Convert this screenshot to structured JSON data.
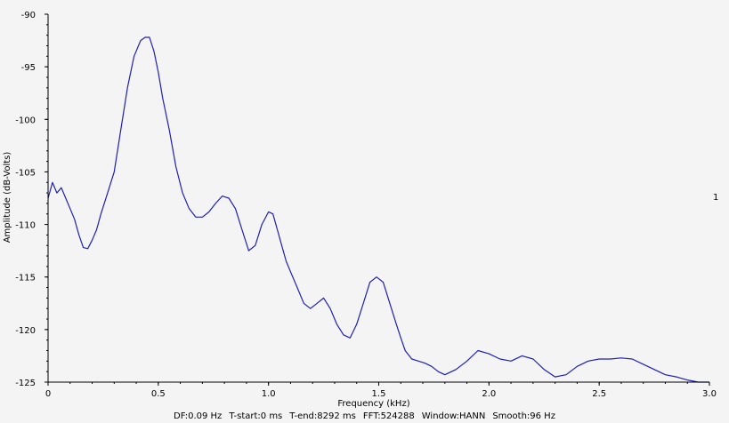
{
  "chart_data": {
    "type": "line",
    "title": "",
    "xlabel": "Frequency (kHz)",
    "ylabel": "Amplitude (dB-Volts)",
    "xlim": [
      0,
      3.0
    ],
    "ylim": [
      -125,
      -90
    ],
    "x_ticks": [
      "0",
      "0.5",
      "1.0",
      "1.5",
      "2.0",
      "2.5",
      "3.0"
    ],
    "x_tick_values": [
      0,
      0.5,
      1.0,
      1.5,
      2.0,
      2.5,
      3.0
    ],
    "y_ticks": [
      "-90",
      "-95",
      "-100",
      "-105",
      "-110",
      "-115",
      "-120",
      "-125"
    ],
    "y_tick_values": [
      -90,
      -95,
      -100,
      -105,
      -110,
      -115,
      -120,
      -125
    ],
    "grid": false,
    "series_color": "#1f1fb4",
    "series": [
      {
        "name": "1",
        "x": [
          0.0,
          0.02,
          0.04,
          0.06,
          0.08,
          0.1,
          0.12,
          0.14,
          0.16,
          0.18,
          0.2,
          0.22,
          0.24,
          0.27,
          0.3,
          0.33,
          0.36,
          0.39,
          0.42,
          0.44,
          0.46,
          0.48,
          0.5,
          0.52,
          0.55,
          0.58,
          0.61,
          0.64,
          0.67,
          0.7,
          0.73,
          0.76,
          0.79,
          0.82,
          0.85,
          0.88,
          0.91,
          0.94,
          0.97,
          1.0,
          1.02,
          1.04,
          1.06,
          1.08,
          1.1,
          1.13,
          1.16,
          1.19,
          1.22,
          1.25,
          1.28,
          1.31,
          1.34,
          1.37,
          1.4,
          1.43,
          1.46,
          1.49,
          1.52,
          1.55,
          1.58,
          1.6,
          1.62,
          1.65,
          1.68,
          1.71,
          1.74,
          1.77,
          1.8,
          1.85,
          1.9,
          1.95,
          2.0,
          2.05,
          2.1,
          2.15,
          2.2,
          2.25,
          2.3,
          2.35,
          2.4,
          2.45,
          2.5,
          2.55,
          2.6,
          2.65,
          2.7,
          2.75,
          2.8,
          2.85,
          2.9,
          2.95,
          3.0
        ],
        "y": [
          -107.5,
          -106.0,
          -107.0,
          -106.5,
          -107.5,
          -108.5,
          -109.5,
          -111.0,
          -112.2,
          -112.3,
          -111.5,
          -110.5,
          -109.0,
          -107.0,
          -105.0,
          -101.0,
          -97.0,
          -94.0,
          -92.5,
          -92.2,
          -92.2,
          -93.5,
          -95.5,
          -98.0,
          -101.0,
          -104.5,
          -107.0,
          -108.5,
          -109.3,
          -109.3,
          -108.8,
          -108.0,
          -107.3,
          -107.5,
          -108.5,
          -110.5,
          -112.5,
          -112.0,
          -110.0,
          -108.8,
          -109.0,
          -110.5,
          -112.0,
          -113.5,
          -114.5,
          -116.0,
          -117.5,
          -118.0,
          -117.5,
          -117.0,
          -118.0,
          -119.5,
          -120.5,
          -120.8,
          -119.5,
          -117.5,
          -115.5,
          -115.0,
          -115.5,
          -117.5,
          -119.5,
          -120.8,
          -122.0,
          -122.8,
          -123.0,
          -123.2,
          -123.5,
          -124.0,
          -124.3,
          -123.8,
          -123.0,
          -122.0,
          -122.3,
          -122.8,
          -123.0,
          -122.5,
          -122.8,
          -123.8,
          -124.5,
          -124.3,
          -123.5,
          -123.0,
          -122.8,
          -122.8,
          -122.7,
          -122.8,
          -123.3,
          -123.8,
          -124.3,
          -124.5,
          -124.8,
          -125.0,
          -125.0
        ]
      }
    ]
  },
  "status_bar": {
    "df": "DF:0.09 Hz",
    "t_start": "T-start:0 ms",
    "t_end": "T-end:8292 ms",
    "fft": "FFT:524288",
    "window": "Window:HANN",
    "smooth": "Smooth:96 Hz"
  }
}
